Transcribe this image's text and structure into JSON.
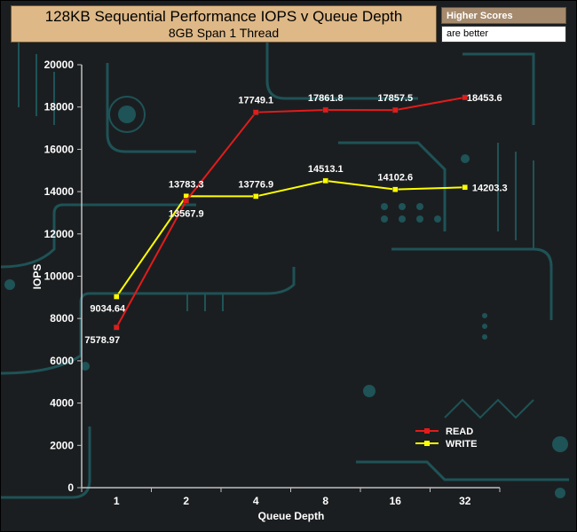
{
  "header": {
    "title": "128KB Sequential Performance IOPS v Queue Depth",
    "subtitle": "8GB Span 1 Thread"
  },
  "note": {
    "title": "Higher Scores",
    "subtitle": "are better"
  },
  "colors": {
    "background": "#1b1e20",
    "circuit": "#1e5357",
    "title_box": "#deb887",
    "read": "#e31b1b",
    "write": "#ffff00",
    "axis": "#bfbfbf"
  },
  "chart_data": {
    "type": "line",
    "title": "128KB Sequential Performance IOPS v Queue Depth",
    "subtitle": "8GB Span 1 Thread",
    "xlabel": "Queue Depth",
    "ylabel": "IOPS",
    "categories": [
      "1",
      "2",
      "4",
      "8",
      "16",
      "32"
    ],
    "ylim": [
      0,
      20000
    ],
    "yticks": [
      0,
      2000,
      4000,
      6000,
      8000,
      10000,
      12000,
      14000,
      16000,
      18000,
      20000
    ],
    "grid": false,
    "legend_position": "bottom-right",
    "series": [
      {
        "name": "READ",
        "color": "#e31b1b",
        "values": [
          7578.97,
          13567.9,
          17749.1,
          17861.8,
          17857.5,
          18453.6
        ],
        "labels": [
          "7578.97",
          "13567.9",
          "17749.1",
          "17861.8",
          "17857.5",
          "18453.6"
        ]
      },
      {
        "name": "WRITE",
        "color": "#ffff00",
        "values": [
          9034.64,
          13783.3,
          13776.9,
          14513.1,
          14102.6,
          14203.3
        ],
        "labels": [
          "9034.64",
          "13783.3",
          "13776.9",
          "14513.1",
          "14102.6",
          "14203.3"
        ]
      }
    ]
  }
}
